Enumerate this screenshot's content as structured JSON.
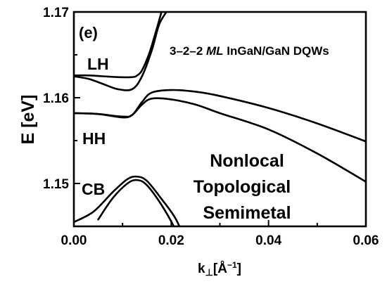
{
  "chart_data": {
    "type": "line",
    "panel_label": "(e)",
    "xlabel": {
      "base": "k",
      "sub": "⊥",
      "unit_open": "[Å",
      "sup": "−1",
      "unit_close": "]"
    },
    "ylabel": "E [eV]",
    "xlim": [
      0,
      0.06
    ],
    "ylim": [
      1.145,
      1.17
    ],
    "x_ticks": [
      0.0,
      0.02,
      0.04,
      0.06
    ],
    "x_tick_labels": [
      "0.00",
      "0.02",
      "0.04",
      "0.06"
    ],
    "y_ticks": [
      1.15,
      1.16,
      1.17
    ],
    "y_tick_labels": [
      "1.15",
      "1.16",
      "1.17"
    ],
    "grid": false,
    "annotations": {
      "structure_a": "3–2–2 ",
      "structure_ml": "ML",
      "structure_b": " InGaN/GaN DQWs",
      "band_lh": "LH",
      "band_hh": "HH",
      "band_cb": "CB",
      "phase_line1": "Nonlocal",
      "phase_line2": "Topological",
      "phase_line3": "Semimetal"
    },
    "series": [
      {
        "band": "LH",
        "x": [
          0,
          0.003,
          0.006,
          0.009,
          0.012,
          0.014,
          0.016,
          0.0175,
          0.019
        ],
        "y": [
          1.1625,
          1.1622,
          1.1616,
          1.161,
          1.161,
          1.1625,
          1.1655,
          1.1685,
          1.17
        ]
      },
      {
        "band": "LH",
        "x": [
          0,
          0.003,
          0.006,
          0.009,
          0.012,
          0.013,
          0.014,
          0.0155,
          0.017,
          0.018
        ],
        "y": [
          1.1626,
          1.1626,
          1.1625,
          1.1624,
          1.1624,
          1.1626,
          1.1632,
          1.1652,
          1.168,
          1.17
        ]
      },
      {
        "band": "HH",
        "x": [
          0,
          0.005,
          0.01,
          0.012,
          0.014,
          0.016,
          0.02,
          0.025,
          0.03,
          0.04,
          0.05,
          0.06
        ],
        "y": [
          1.1582,
          1.1581,
          1.1578,
          1.158,
          1.1595,
          1.1606,
          1.1609,
          1.1607,
          1.1602,
          1.1588,
          1.157,
          1.1549
        ]
      },
      {
        "band": "HH",
        "x": [
          0,
          0.005,
          0.01,
          0.012,
          0.014,
          0.016,
          0.02,
          0.025,
          0.03,
          0.04,
          0.05,
          0.06
        ],
        "y": [
          1.1582,
          1.1581,
          1.1577,
          1.158,
          1.1592,
          1.1599,
          1.1598,
          1.1592,
          1.1582,
          1.1563,
          1.1535,
          1.1502
        ]
      },
      {
        "band": "CB",
        "x": [
          0,
          0.004,
          0.008,
          0.011,
          0.013,
          0.015,
          0.018,
          0.021,
          0.0235
        ],
        "y": [
          1.1455,
          1.1467,
          1.149,
          1.1505,
          1.1508,
          1.1503,
          1.1482,
          1.1458,
          1.1425
        ]
      },
      {
        "band": "CB",
        "x": [
          0.005,
          0.008,
          0.011,
          0.013,
          0.015,
          0.018,
          0.021,
          0.0225
        ],
        "y": [
          1.1458,
          1.1483,
          1.15,
          1.1504,
          1.1498,
          1.1475,
          1.1445,
          1.1425
        ]
      }
    ]
  }
}
